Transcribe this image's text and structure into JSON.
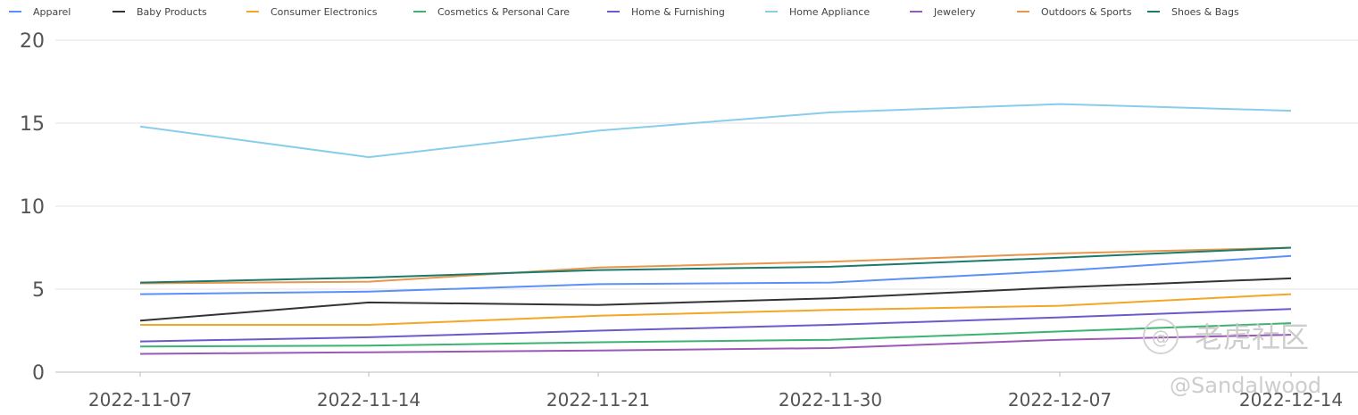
{
  "chart_data": {
    "type": "line",
    "title": "",
    "xlabel": "",
    "ylabel": "",
    "x": [
      "2022-11-07",
      "2022-11-14",
      "2022-11-21",
      "2022-11-30",
      "2022-12-07",
      "2022-12-14"
    ],
    "ylim": [
      0,
      20
    ],
    "yticks": [
      0,
      5,
      10,
      15,
      20
    ],
    "grid": true,
    "legend": "top",
    "series": [
      {
        "name": "Apparel",
        "color": "#5b8ff9",
        "values": [
          4.7,
          4.85,
          5.3,
          5.4,
          6.1,
          7.0
        ]
      },
      {
        "name": "Baby Products",
        "color": "#333333",
        "values": [
          3.1,
          4.2,
          4.05,
          4.45,
          5.1,
          5.65
        ]
      },
      {
        "name": "Consumer Electronics",
        "color": "#f5a623",
        "values": [
          2.85,
          2.85,
          3.4,
          3.75,
          4.0,
          4.7
        ]
      },
      {
        "name": "Cosmetics & Personal Care",
        "color": "#3cb371",
        "values": [
          1.55,
          1.6,
          1.8,
          1.95,
          2.45,
          2.95
        ]
      },
      {
        "name": "Home & Furnishing",
        "color": "#6a5acd",
        "values": [
          1.85,
          2.1,
          2.5,
          2.85,
          3.3,
          3.8
        ]
      },
      {
        "name": "Home Appliance",
        "color": "#87ceeb",
        "values": [
          14.8,
          12.95,
          14.55,
          15.65,
          16.15,
          15.75
        ]
      },
      {
        "name": "Jewelery",
        "color": "#9b59b6",
        "values": [
          1.1,
          1.2,
          1.3,
          1.45,
          1.95,
          2.25
        ]
      },
      {
        "name": "Outdoors & Sports",
        "color": "#e8964a",
        "values": [
          5.35,
          5.45,
          6.3,
          6.65,
          7.15,
          7.5
        ]
      },
      {
        "name": "Shoes & Bags",
        "color": "#1a7a6e",
        "values": [
          5.4,
          5.7,
          6.15,
          6.35,
          6.9,
          7.5
        ]
      }
    ]
  },
  "watermark": {
    "logo_text": "老虎社区",
    "handle": "@Sandalwood"
  }
}
